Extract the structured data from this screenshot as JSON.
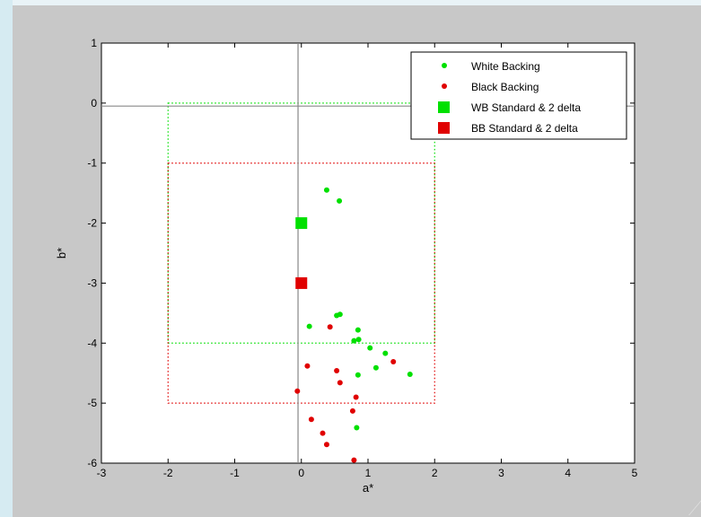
{
  "chart_data": {
    "type": "scatter",
    "xlabel": "a*",
    "ylabel": "b*",
    "xlim": [
      -3,
      5
    ],
    "ylim": [
      -6,
      1
    ],
    "x_ticks": [
      -3,
      -2,
      -1,
      0,
      1,
      2,
      3,
      4,
      5
    ],
    "y_ticks": [
      1,
      0,
      -1,
      -2,
      -3,
      -4,
      -5,
      -6
    ],
    "x_tick_labels": [
      "-3",
      "-2",
      "-1",
      "0",
      "1",
      "2",
      "3",
      "4",
      "5"
    ],
    "y_tick_labels": [
      "1",
      "0",
      "-1",
      "-2",
      "-3",
      "-4",
      "-5",
      "-6"
    ],
    "grid": false,
    "legend_position": "top-right",
    "crosshair": {
      "x": -0.05,
      "y": -0.05
    },
    "series": [
      {
        "name": "White Backing",
        "marker": "dot",
        "color": "#00e000",
        "points": [
          [
            0.38,
            -1.45
          ],
          [
            0.57,
            -1.63
          ],
          [
            0.12,
            -3.72
          ],
          [
            0.53,
            -3.54
          ],
          [
            0.58,
            -3.52
          ],
          [
            0.85,
            -3.78
          ],
          [
            0.79,
            -3.96
          ],
          [
            0.86,
            -3.94
          ],
          [
            1.03,
            -4.08
          ],
          [
            1.26,
            -4.17
          ],
          [
            1.12,
            -4.41
          ],
          [
            0.85,
            -4.53
          ],
          [
            1.63,
            -4.52
          ],
          [
            0.83,
            -5.41
          ]
        ]
      },
      {
        "name": "Black Backing",
        "marker": "dot",
        "color": "#e00000",
        "points": [
          [
            0.43,
            -3.73
          ],
          [
            1.38,
            -4.31
          ],
          [
            0.09,
            -4.38
          ],
          [
            0.53,
            -4.46
          ],
          [
            0.58,
            -4.66
          ],
          [
            -0.06,
            -4.8
          ],
          [
            0.82,
            -4.9
          ],
          [
            0.77,
            -5.13
          ],
          [
            0.15,
            -5.27
          ],
          [
            0.32,
            -5.5
          ],
          [
            0.38,
            -5.69
          ],
          [
            0.79,
            -5.95
          ]
        ]
      },
      {
        "name": "WB Standard & 2 delta",
        "marker": "square",
        "color": "#00e000",
        "points": [
          [
            0.0,
            -2.0
          ]
        ],
        "box": {
          "x": [
            -2,
            2
          ],
          "y": [
            -4,
            0
          ]
        }
      },
      {
        "name": "BB Standard & 2 delta",
        "marker": "square",
        "color": "#e00000",
        "points": [
          [
            0.0,
            -3.0
          ]
        ],
        "box": {
          "x": [
            -2,
            2
          ],
          "y": [
            -5,
            -1
          ]
        }
      }
    ]
  }
}
